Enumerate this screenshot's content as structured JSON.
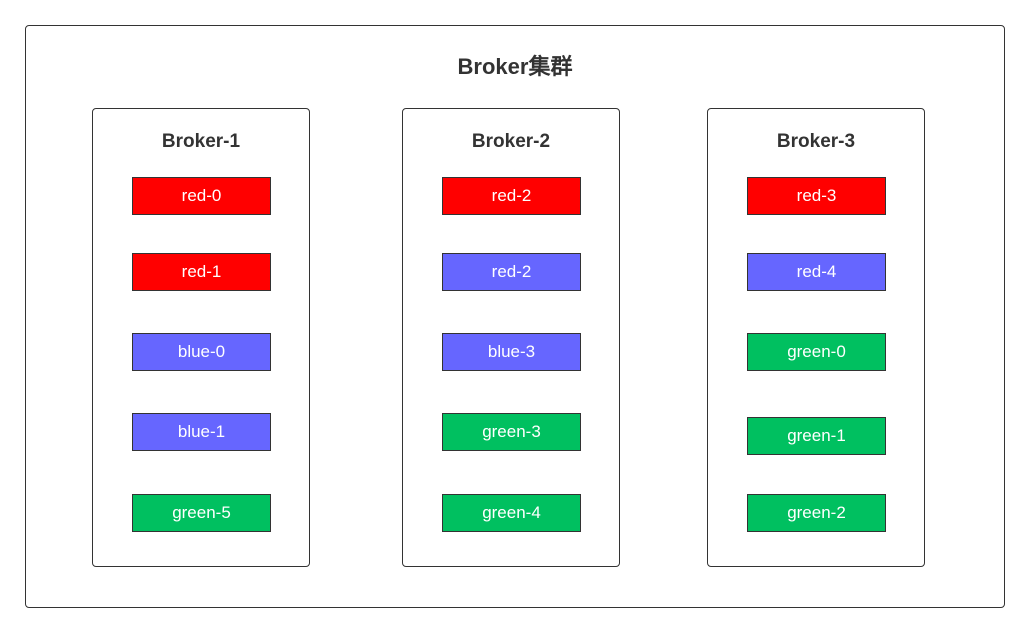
{
  "cluster": {
    "title": "Broker集群"
  },
  "brokers": [
    {
      "title": "Broker-1",
      "partitions": [
        {
          "label": "red-0",
          "color": "#ff0000"
        },
        {
          "label": "red-1",
          "color": "#ff0000"
        },
        {
          "label": "blue-0",
          "color": "#6666ff"
        },
        {
          "label": "blue-1",
          "color": "#6666ff"
        },
        {
          "label": "green-5",
          "color": "#00c060"
        }
      ]
    },
    {
      "title": "Broker-2",
      "partitions": [
        {
          "label": "red-2",
          "color": "#ff0000"
        },
        {
          "label": "red-2",
          "color": "#6666ff"
        },
        {
          "label": "blue-3",
          "color": "#6666ff"
        },
        {
          "label": "green-3",
          "color": "#00c060"
        },
        {
          "label": "green-4",
          "color": "#00c060"
        }
      ]
    },
    {
      "title": "Broker-3",
      "partitions": [
        {
          "label": "red-3",
          "color": "#ff0000"
        },
        {
          "label": "red-4",
          "color": "#6666ff"
        },
        {
          "label": "green-0",
          "color": "#00c060"
        },
        {
          "label": "green-1",
          "color": "#00c060"
        },
        {
          "label": "green-2",
          "color": "#00c060"
        }
      ]
    }
  ]
}
